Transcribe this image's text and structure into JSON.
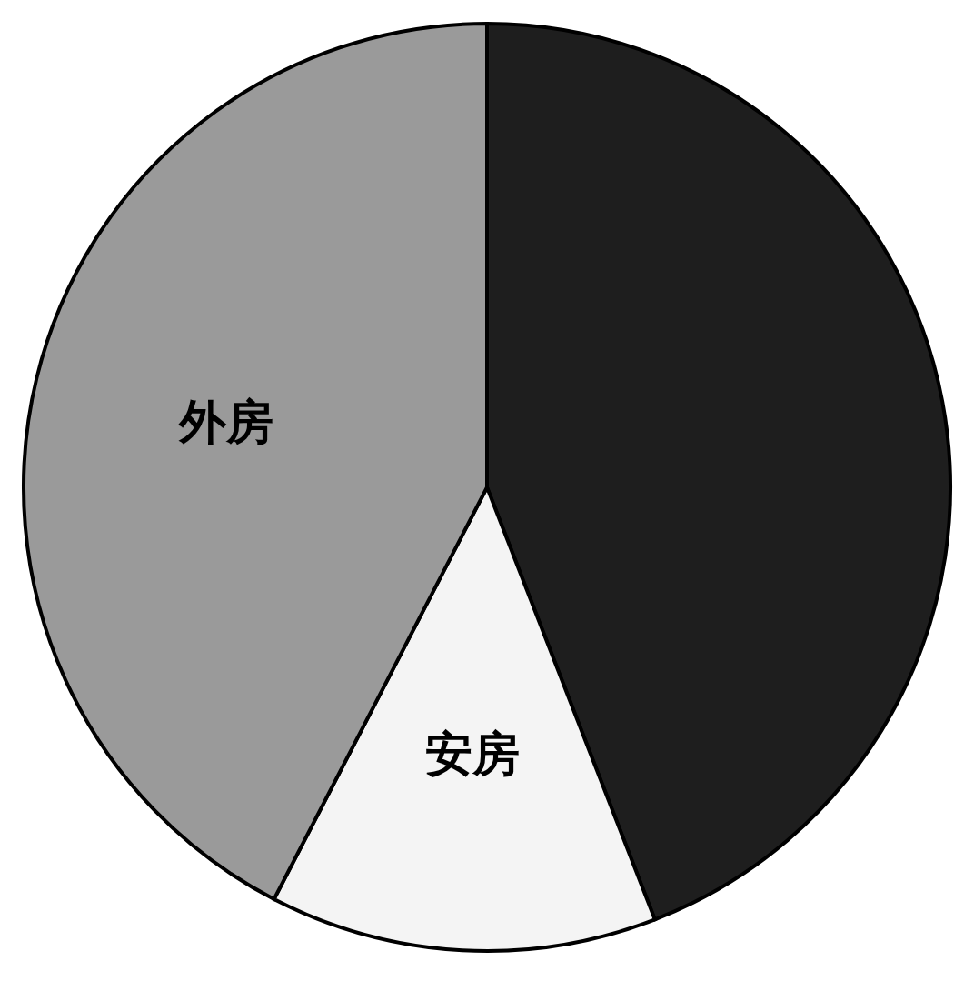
{
  "chart_data": {
    "type": "pie",
    "categories": [
      null,
      "安房",
      "外房"
    ],
    "values": [
      44.1,
      13.5,
      42.4
    ],
    "colors": [
      "#1e1e1e",
      "#f4f4f4",
      "#9a9a9a"
    ]
  }
}
